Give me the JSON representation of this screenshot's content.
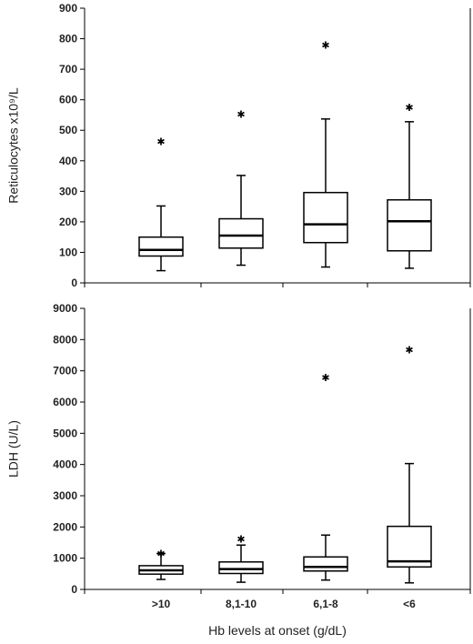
{
  "chart_data": [
    {
      "type": "box",
      "ylabel": "Reticulocytes x10⁹/L",
      "ylim": [
        0,
        900
      ],
      "yticks": [
        0,
        100,
        200,
        300,
        400,
        500,
        600,
        700,
        800,
        900
      ],
      "categories": [
        ">10",
        "8,1-10",
        "6,1-8",
        "<6"
      ],
      "boxes": [
        {
          "min": 40,
          "q1": 88,
          "median": 108,
          "q3": 150,
          "max": 252,
          "outliers": [
            463
          ]
        },
        {
          "min": 58,
          "q1": 114,
          "median": 155,
          "q3": 210,
          "max": 352,
          "outliers": [
            553
          ]
        },
        {
          "min": 52,
          "q1": 132,
          "median": 192,
          "q3": 296,
          "max": 537,
          "outliers": [
            780
          ]
        },
        {
          "min": 48,
          "q1": 105,
          "median": 202,
          "q3": 272,
          "max": 528,
          "outliers": [
            575
          ]
        }
      ]
    },
    {
      "type": "box",
      "ylabel": "LDH (U/L)",
      "xlabel": "Hb levels at onset (g/dL)",
      "ylim": [
        0,
        9000
      ],
      "yticks": [
        0,
        1000,
        2000,
        3000,
        4000,
        5000,
        6000,
        7000,
        8000,
        9000
      ],
      "categories": [
        ">10",
        "8,1-10",
        "6,1-8",
        "<6"
      ],
      "boxes": [
        {
          "min": 320,
          "q1": 490,
          "median": 610,
          "q3": 760,
          "max": 1150,
          "outliers": [
            1150
          ]
        },
        {
          "min": 230,
          "q1": 510,
          "median": 650,
          "q3": 880,
          "max": 1420,
          "outliers": [
            1620
          ]
        },
        {
          "min": 300,
          "q1": 590,
          "median": 720,
          "q3": 1040,
          "max": 1740,
          "outliers": [
            6790
          ]
        },
        {
          "min": 210,
          "q1": 720,
          "median": 900,
          "q3": 2020,
          "max": 4030,
          "outliers": [
            7680
          ]
        }
      ]
    }
  ]
}
